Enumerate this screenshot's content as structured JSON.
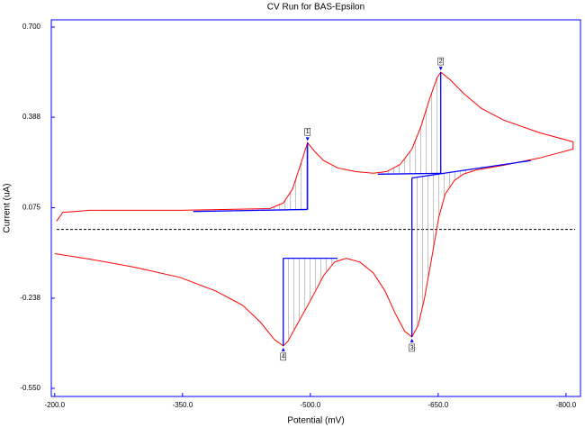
{
  "chart_data": {
    "type": "line",
    "title": "CV Run for BAS-Epsilon",
    "xlabel": "Potential (mV)",
    "ylabel": "Current (uA)",
    "xlim": [
      -196,
      -817
    ],
    "ylim": [
      -0.578,
      0.725
    ],
    "xticks": [
      {
        "value": -200,
        "label": "-200.0"
      },
      {
        "value": -350,
        "label": "-350.0"
      },
      {
        "value": -500,
        "label": "-500.0"
      },
      {
        "value": -650,
        "label": "-650.0"
      },
      {
        "value": -800,
        "label": "-800.0"
      }
    ],
    "yticks": [
      {
        "value": 0.7,
        "label": "0.700"
      },
      {
        "value": 0.388,
        "label": "0.388"
      },
      {
        "value": 0.075,
        "label": "0.075"
      },
      {
        "value": -0.238,
        "label": "-0.238"
      },
      {
        "value": -0.55,
        "label": "-0.550"
      }
    ],
    "zero_line": true,
    "frame_color": "#0000ff",
    "series": [
      {
        "color": "#ff0000",
        "x": [
          -202.1,
          -209.5,
          -241.2,
          -346.8,
          -452.4,
          -468.2,
          -478.8,
          -489.3,
          -496.7,
          -505.2,
          -515.7,
          -531.6,
          -552.7,
          -573.8,
          -589.7,
          -605.5,
          -619.2,
          -629.8,
          -640.4,
          -648.8,
          -653,
          -663.6,
          -679.4,
          -700.5,
          -726.9,
          -769.2,
          -808.3,
          -808.3,
          -769.2,
          -726.9,
          -695.3,
          -679.4,
          -668.9,
          -658.3,
          -650.9,
          -642.5,
          -634,
          -626.6,
          -619.2,
          -610.8,
          -600.2,
          -587.6,
          -573.8,
          -558,
          -542.1,
          -528.4,
          -515.7,
          -499.9,
          -484.1,
          -473.5,
          -468.2,
          -457.7,
          -441.8,
          -420.7,
          -389,
          -346.8,
          -294,
          -241.2,
          -200
        ],
        "values": [
          0.028,
          0.059,
          0.066,
          0.066,
          0.072,
          0.091,
          0.138,
          0.231,
          0.3,
          0.269,
          0.238,
          0.213,
          0.2,
          0.194,
          0.2,
          0.225,
          0.278,
          0.356,
          0.456,
          0.525,
          0.544,
          0.519,
          0.472,
          0.419,
          0.378,
          0.334,
          0.303,
          0.278,
          0.247,
          0.222,
          0.206,
          0.191,
          0.169,
          0.122,
          0.044,
          -0.097,
          -0.238,
          -0.331,
          -0.372,
          -0.353,
          -0.294,
          -0.213,
          -0.15,
          -0.113,
          -0.1,
          -0.113,
          -0.159,
          -0.247,
          -0.331,
          -0.388,
          -0.403,
          -0.381,
          -0.322,
          -0.263,
          -0.213,
          -0.166,
          -0.131,
          -0.103,
          -0.084
        ]
      }
    ],
    "peaks": [
      {
        "label": "1",
        "x": -496.7,
        "y": 0.3,
        "baseline_x": [
          -362.6,
          -496.7
        ],
        "baseline_y": [
          0.062,
          0.069
        ]
      },
      {
        "label": "2",
        "x": -653,
        "y": 0.544,
        "baseline_x": [
          -579.1,
          -653
        ],
        "baseline_y": [
          0.191,
          0.194
        ]
      },
      {
        "label": "3",
        "x": -619.2,
        "y": -0.372,
        "baseline_x": [
          -619.2,
          -758.6
        ],
        "baseline_y": [
          0.178,
          0.238
        ]
      },
      {
        "label": "4",
        "x": -468.2,
        "y": -0.403,
        "baseline_x": [
          -468.2,
          -531.6
        ],
        "baseline_y": [
          -0.1,
          -0.1
        ]
      }
    ],
    "baseline_color": "#0000ff"
  }
}
